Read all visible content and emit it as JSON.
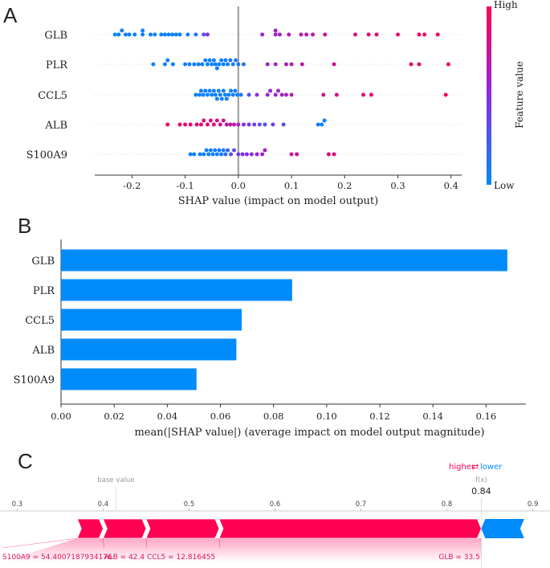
{
  "panels": {
    "a": "A",
    "b": "B",
    "c": "C"
  },
  "chart_data": [
    {
      "type": "scatter",
      "title": "",
      "subtype": "shap-beeswarm",
      "features": [
        "GLB",
        "PLR",
        "CCL5",
        "ALB",
        "S100A9"
      ],
      "xlabel": "SHAP value (impact on model output)",
      "xlim": [
        -0.27,
        0.42
      ],
      "xticks": [
        -0.2,
        -0.1,
        0.0,
        0.1,
        0.2,
        0.3,
        0.4
      ],
      "xtick_labels": [
        "-0.2",
        "-0.1",
        "0.0",
        "0.1",
        "0.2",
        "0.3",
        "0.4"
      ],
      "colorbar": {
        "label": "Feature value",
        "high": "High",
        "low": "Low",
        "high_color": "#ff0052",
        "low_color": "#008bfb"
      },
      "points": [
        [
          {
            "x": -0.232,
            "f": 0.0
          },
          {
            "x": -0.225,
            "f": 0.05
          },
          {
            "x": -0.219,
            "f": 0.05
          },
          {
            "x": -0.212,
            "f": 0.05
          },
          {
            "x": -0.205,
            "f": 0.05
          },
          {
            "x": -0.195,
            "f": 0.05
          },
          {
            "x": -0.18,
            "f": 0.05
          },
          {
            "x": -0.18,
            "f": 0.05
          },
          {
            "x": -0.165,
            "f": 0.05
          },
          {
            "x": -0.157,
            "f": 0.05
          },
          {
            "x": -0.145,
            "f": 0.05
          },
          {
            "x": -0.138,
            "f": 0.05
          },
          {
            "x": -0.131,
            "f": 0.05
          },
          {
            "x": -0.124,
            "f": 0.05
          },
          {
            "x": -0.117,
            "f": 0.05
          },
          {
            "x": -0.11,
            "f": 0.05
          },
          {
            "x": -0.095,
            "f": 0.1
          },
          {
            "x": -0.08,
            "f": 0.1
          },
          {
            "x": -0.065,
            "f": 0.35
          },
          {
            "x": -0.058,
            "f": 0.45
          },
          {
            "x": 0.045,
            "f": 0.55
          },
          {
            "x": 0.07,
            "f": 0.6
          },
          {
            "x": 0.07,
            "f": 0.6
          },
          {
            "x": 0.078,
            "f": 0.6
          },
          {
            "x": 0.095,
            "f": 0.65
          },
          {
            "x": 0.118,
            "f": 0.68
          },
          {
            "x": 0.128,
            "f": 0.68
          },
          {
            "x": 0.14,
            "f": 0.72
          },
          {
            "x": 0.163,
            "f": 0.78
          },
          {
            "x": 0.22,
            "f": 0.85
          },
          {
            "x": 0.245,
            "f": 0.88
          },
          {
            "x": 0.26,
            "f": 0.88
          },
          {
            "x": 0.3,
            "f": 0.9
          },
          {
            "x": 0.34,
            "f": 0.93
          },
          {
            "x": 0.35,
            "f": 0.93
          },
          {
            "x": 0.375,
            "f": 0.93
          }
        ],
        [
          {
            "x": -0.16,
            "f": 0.05
          },
          {
            "x": -0.138,
            "f": 0.05
          },
          {
            "x": -0.133,
            "f": 0.05
          },
          {
            "x": -0.123,
            "f": 0.05
          },
          {
            "x": -0.1,
            "f": 0.05
          },
          {
            "x": -0.092,
            "f": 0.05
          },
          {
            "x": -0.083,
            "f": 0.05
          },
          {
            "x": -0.075,
            "f": 0.05
          },
          {
            "x": -0.068,
            "f": 0.05
          },
          {
            "x": -0.062,
            "f": 0.05
          },
          {
            "x": -0.058,
            "f": 0.05
          },
          {
            "x": -0.054,
            "f": 0.05
          },
          {
            "x": -0.05,
            "f": 0.05
          },
          {
            "x": -0.046,
            "f": 0.05
          },
          {
            "x": -0.043,
            "f": 0.05
          },
          {
            "x": -0.04,
            "f": 0.05
          },
          {
            "x": -0.036,
            "f": 0.05
          },
          {
            "x": -0.032,
            "f": 0.05
          },
          {
            "x": -0.028,
            "f": 0.05
          },
          {
            "x": -0.024,
            "f": 0.05
          },
          {
            "x": -0.02,
            "f": 0.05
          },
          {
            "x": -0.015,
            "f": 0.1
          },
          {
            "x": -0.01,
            "f": 0.1
          },
          {
            "x": -0.005,
            "f": 0.1
          },
          {
            "x": 0.0,
            "f": 0.1
          },
          {
            "x": 0.01,
            "f": 0.1
          },
          {
            "x": 0.055,
            "f": 0.6
          },
          {
            "x": 0.07,
            "f": 0.62
          },
          {
            "x": 0.09,
            "f": 0.65
          },
          {
            "x": 0.1,
            "f": 0.65
          },
          {
            "x": 0.12,
            "f": 0.7
          },
          {
            "x": 0.18,
            "f": 0.8
          },
          {
            "x": 0.325,
            "f": 0.92
          },
          {
            "x": 0.34,
            "f": 0.92
          },
          {
            "x": 0.395,
            "f": 0.95
          }
        ],
        [
          {
            "x": -0.08,
            "f": 0.05
          },
          {
            "x": -0.073,
            "f": 0.05
          },
          {
            "x": -0.07,
            "f": 0.05
          },
          {
            "x": -0.066,
            "f": 0.05
          },
          {
            "x": -0.062,
            "f": 0.05
          },
          {
            "x": -0.058,
            "f": 0.05
          },
          {
            "x": -0.054,
            "f": 0.05
          },
          {
            "x": -0.05,
            "f": 0.05
          },
          {
            "x": -0.046,
            "f": 0.05
          },
          {
            "x": -0.043,
            "f": 0.05
          },
          {
            "x": -0.04,
            "f": 0.05
          },
          {
            "x": -0.037,
            "f": 0.05
          },
          {
            "x": -0.034,
            "f": 0.05
          },
          {
            "x": -0.031,
            "f": 0.05
          },
          {
            "x": -0.028,
            "f": 0.05
          },
          {
            "x": -0.025,
            "f": 0.05
          },
          {
            "x": -0.022,
            "f": 0.05
          },
          {
            "x": -0.018,
            "f": 0.05
          },
          {
            "x": -0.014,
            "f": 0.05
          },
          {
            "x": -0.01,
            "f": 0.05
          },
          {
            "x": -0.006,
            "f": 0.05
          },
          {
            "x": -0.002,
            "f": 0.05
          },
          {
            "x": 0.005,
            "f": 0.1
          },
          {
            "x": 0.02,
            "f": 0.3
          },
          {
            "x": 0.035,
            "f": 0.45
          },
          {
            "x": 0.055,
            "f": 0.55
          },
          {
            "x": 0.06,
            "f": 0.55
          },
          {
            "x": 0.07,
            "f": 0.58
          },
          {
            "x": 0.075,
            "f": 0.6
          },
          {
            "x": 0.082,
            "f": 0.6
          },
          {
            "x": 0.09,
            "f": 0.62
          },
          {
            "x": 0.1,
            "f": 0.65
          },
          {
            "x": 0.16,
            "f": 0.75
          },
          {
            "x": 0.185,
            "f": 0.8
          },
          {
            "x": 0.235,
            "f": 0.87
          },
          {
            "x": 0.25,
            "f": 0.88
          },
          {
            "x": 0.39,
            "f": 0.95
          }
        ],
        [
          {
            "x": -0.133,
            "f": 0.95
          },
          {
            "x": -0.11,
            "f": 0.92
          },
          {
            "x": -0.1,
            "f": 0.92
          },
          {
            "x": -0.09,
            "f": 0.9
          },
          {
            "x": -0.078,
            "f": 0.88
          },
          {
            "x": -0.07,
            "f": 0.85
          },
          {
            "x": -0.065,
            "f": 0.85
          },
          {
            "x": -0.058,
            "f": 0.85
          },
          {
            "x": -0.052,
            "f": 0.85
          },
          {
            "x": -0.046,
            "f": 0.82
          },
          {
            "x": -0.04,
            "f": 0.82
          },
          {
            "x": -0.034,
            "f": 0.8
          },
          {
            "x": -0.028,
            "f": 0.78
          },
          {
            "x": -0.022,
            "f": 0.75
          },
          {
            "x": -0.015,
            "f": 0.72
          },
          {
            "x": -0.008,
            "f": 0.7
          },
          {
            "x": 0.0,
            "f": 0.62
          },
          {
            "x": 0.01,
            "f": 0.5
          },
          {
            "x": 0.02,
            "f": 0.45
          },
          {
            "x": 0.03,
            "f": 0.4
          },
          {
            "x": 0.04,
            "f": 0.35
          },
          {
            "x": 0.05,
            "f": 0.3
          },
          {
            "x": 0.065,
            "f": 0.4
          },
          {
            "x": 0.085,
            "f": 0.3
          },
          {
            "x": 0.15,
            "f": 0.1
          },
          {
            "x": 0.157,
            "f": 0.05
          },
          {
            "x": 0.162,
            "f": 0.05
          }
        ],
        [
          {
            "x": -0.09,
            "f": 0.05
          },
          {
            "x": -0.083,
            "f": 0.05
          },
          {
            "x": -0.072,
            "f": 0.05
          },
          {
            "x": -0.065,
            "f": 0.05
          },
          {
            "x": -0.06,
            "f": 0.05
          },
          {
            "x": -0.056,
            "f": 0.05
          },
          {
            "x": -0.052,
            "f": 0.05
          },
          {
            "x": -0.048,
            "f": 0.05
          },
          {
            "x": -0.044,
            "f": 0.05
          },
          {
            "x": -0.04,
            "f": 0.05
          },
          {
            "x": -0.036,
            "f": 0.1
          },
          {
            "x": -0.032,
            "f": 0.1
          },
          {
            "x": -0.028,
            "f": 0.1
          },
          {
            "x": -0.024,
            "f": 0.15
          },
          {
            "x": -0.02,
            "f": 0.2
          },
          {
            "x": -0.014,
            "f": 0.3
          },
          {
            "x": -0.008,
            "f": 0.35
          },
          {
            "x": 0.0,
            "f": 0.4
          },
          {
            "x": 0.008,
            "f": 0.45
          },
          {
            "x": 0.016,
            "f": 0.5
          },
          {
            "x": 0.025,
            "f": 0.5
          },
          {
            "x": 0.035,
            "f": 0.55
          },
          {
            "x": 0.045,
            "f": 0.6
          },
          {
            "x": 0.05,
            "f": 0.6
          },
          {
            "x": 0.1,
            "f": 0.75
          },
          {
            "x": 0.11,
            "f": 0.78
          },
          {
            "x": 0.17,
            "f": 0.85
          },
          {
            "x": 0.18,
            "f": 0.88
          }
        ]
      ]
    },
    {
      "type": "bar",
      "orientation": "horizontal",
      "title": "",
      "categories": [
        "GLB",
        "PLR",
        "CCL5",
        "ALB",
        "S100A9"
      ],
      "values": [
        0.168,
        0.087,
        0.068,
        0.066,
        0.051
      ],
      "xlabel": "mean(|SHAP value|) (average impact on model output magnitude)",
      "xlim": [
        0.0,
        0.175
      ],
      "xticks": [
        0.0,
        0.02,
        0.04,
        0.06,
        0.08,
        0.1,
        0.12,
        0.14,
        0.16
      ],
      "xtick_labels": [
        "0.00",
        "0.02",
        "0.04",
        "0.06",
        "0.08",
        "0.10",
        "0.12",
        "0.14",
        "0.16"
      ],
      "color": "#008bfb"
    },
    {
      "type": "force",
      "title": "",
      "higher_label": "higher",
      "lower_label": "lower",
      "arrows_glyph": "⇄",
      "base_value_label": "base value",
      "fx_label": "f(x)",
      "fx_value": 0.84,
      "fx_text": "0.84",
      "base_value": 0.415,
      "xlim": [
        0.28,
        0.92
      ],
      "xticks": [
        0.3,
        0.4,
        0.5,
        0.6,
        0.7,
        0.8,
        0.9
      ],
      "xtick_labels": [
        "0.3",
        "0.4",
        "0.5",
        "0.6",
        "0.7",
        "0.8",
        "0.9"
      ],
      "positive_color": "#ff0052",
      "negative_color": "#008bfb",
      "positive_segments": [
        {
          "label": "S100A9 = 54.4007187934176",
          "start": 0.37,
          "end": 0.4
        },
        {
          "label": "ALB = 42.4",
          "start": 0.4,
          "end": 0.45
        },
        {
          "label": "CCL5 = 12.816455",
          "start": 0.45,
          "end": 0.535
        },
        {
          "label": "GLB = 33.5",
          "start": 0.535,
          "end": 0.84
        }
      ],
      "negative_segments": [
        {
          "label": "",
          "start": 0.84,
          "end": 0.89
        }
      ]
    }
  ]
}
